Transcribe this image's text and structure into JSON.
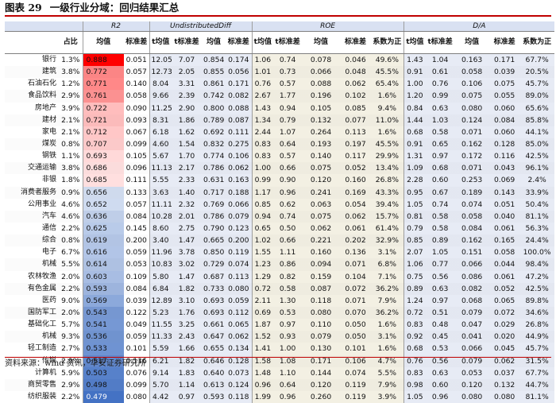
{
  "figure": {
    "label": "图表 29",
    "title": "一级行业分域：回归结果汇总",
    "source": "资料来源：wind 资讯，华安证券研究所"
  },
  "groups": {
    "r2": "R2",
    "ud": "UndistributedDiff",
    "roe": "ROE",
    "da": "D/A"
  },
  "subheaders": {
    "share": "占比",
    "r2_mean": "均值",
    "r2_std": "标准差",
    "t_mean": "t均值",
    "t_std": "t标准差",
    "mean": "均值",
    "std": "标准差",
    "pos": "系数为正"
  },
  "colors": {
    "r2_high": "#ff0000",
    "r2_low": "#4472c4",
    "title_rule": "#c00000",
    "group_header": "#d9e1f2"
  },
  "rows": [
    {
      "industry": "银行",
      "share": "1.3%",
      "r2": 0.888,
      "r2s": "0.051",
      "ud_tm": "12.05",
      "ud_ts": "7.07",
      "ud_m": "0.854",
      "ud_s": "0.174",
      "roe_tm": "1.06",
      "roe_ts": "0.74",
      "roe_m": "0.078",
      "roe_s": "0.046",
      "roe_p": "49.6%",
      "da_tm": "1.43",
      "da_ts": "1.04",
      "da_m": "0.163",
      "da_s": "0.171",
      "da_p": "67.7%"
    },
    {
      "industry": "建筑",
      "share": "3.8%",
      "r2": 0.772,
      "r2s": "0.057",
      "ud_tm": "12.73",
      "ud_ts": "2.05",
      "ud_m": "0.855",
      "ud_s": "0.056",
      "roe_tm": "1.01",
      "roe_ts": "0.73",
      "roe_m": "0.066",
      "roe_s": "0.048",
      "roe_p": "45.5%",
      "da_tm": "0.91",
      "da_ts": "0.61",
      "da_m": "0.058",
      "da_s": "0.039",
      "da_p": "20.5%"
    },
    {
      "industry": "石油石化",
      "share": "1.2%",
      "r2": 0.771,
      "r2s": "0.140",
      "ud_tm": "8.04",
      "ud_ts": "3.31",
      "ud_m": "0.861",
      "ud_s": "0.171",
      "roe_tm": "0.76",
      "roe_ts": "0.57",
      "roe_m": "0.088",
      "roe_s": "0.062",
      "roe_p": "65.4%",
      "da_tm": "1.00",
      "da_ts": "0.76",
      "da_m": "0.106",
      "da_s": "0.075",
      "da_p": "45.7%"
    },
    {
      "industry": "食品饮料",
      "share": "2.9%",
      "r2": 0.761,
      "r2s": "0.058",
      "ud_tm": "9.66",
      "ud_ts": "2.39",
      "ud_m": "0.742",
      "ud_s": "0.082",
      "roe_tm": "2.67",
      "roe_ts": "1.77",
      "roe_m": "0.196",
      "roe_s": "0.102",
      "roe_p": "1.6%",
      "da_tm": "1.20",
      "da_ts": "0.99",
      "da_m": "0.075",
      "da_s": "0.055",
      "da_p": "89.0%"
    },
    {
      "industry": "房地产",
      "share": "3.9%",
      "r2": 0.722,
      "r2s": "0.090",
      "ud_tm": "11.25",
      "ud_ts": "2.90",
      "ud_m": "0.800",
      "ud_s": "0.088",
      "roe_tm": "1.43",
      "roe_ts": "0.94",
      "roe_m": "0.105",
      "roe_s": "0.085",
      "roe_p": "9.4%",
      "da_tm": "0.84",
      "da_ts": "0.63",
      "da_m": "0.080",
      "da_s": "0.060",
      "da_p": "65.6%"
    },
    {
      "industry": "建材",
      "share": "2.1%",
      "r2": 0.721,
      "r2s": "0.093",
      "ud_tm": "8.31",
      "ud_ts": "1.86",
      "ud_m": "0.789",
      "ud_s": "0.087",
      "roe_tm": "1.34",
      "roe_ts": "0.79",
      "roe_m": "0.132",
      "roe_s": "0.077",
      "roe_p": "11.0%",
      "da_tm": "1.44",
      "da_ts": "1.03",
      "da_m": "0.124",
      "da_s": "0.084",
      "da_p": "85.8%"
    },
    {
      "industry": "家电",
      "share": "2.1%",
      "r2": 0.712,
      "r2s": "0.067",
      "ud_tm": "6.18",
      "ud_ts": "1.62",
      "ud_m": "0.692",
      "ud_s": "0.111",
      "roe_tm": "2.44",
      "roe_ts": "1.07",
      "roe_m": "0.264",
      "roe_s": "0.113",
      "roe_p": "1.6%",
      "da_tm": "0.68",
      "da_ts": "0.58",
      "da_m": "0.071",
      "da_s": "0.060",
      "da_p": "44.1%"
    },
    {
      "industry": "煤炭",
      "share": "0.8%",
      "r2": 0.707,
      "r2s": "0.099",
      "ud_tm": "4.60",
      "ud_ts": "1.54",
      "ud_m": "0.832",
      "ud_s": "0.275",
      "roe_tm": "0.83",
      "roe_ts": "0.64",
      "roe_m": "0.193",
      "roe_s": "0.197",
      "roe_p": "45.5%",
      "da_tm": "0.91",
      "da_ts": "0.65",
      "da_m": "0.162",
      "da_s": "0.128",
      "da_p": "85.0%"
    },
    {
      "industry": "钢铁",
      "share": "1.1%",
      "r2": 0.693,
      "r2s": "0.105",
      "ud_tm": "5.67",
      "ud_ts": "1.70",
      "ud_m": "0.774",
      "ud_s": "0.106",
      "roe_tm": "0.83",
      "roe_ts": "0.57",
      "roe_m": "0.140",
      "roe_s": "0.117",
      "roe_p": "29.9%",
      "da_tm": "1.31",
      "da_ts": "0.97",
      "da_m": "0.172",
      "da_s": "0.116",
      "da_p": "42.5%"
    },
    {
      "industry": "交通运输",
      "share": "3.8%",
      "r2": 0.686,
      "r2s": "0.096",
      "ud_tm": "11.13",
      "ud_ts": "2.17",
      "ud_m": "0.786",
      "ud_s": "0.062",
      "roe_tm": "1.00",
      "roe_ts": "0.66",
      "roe_m": "0.075",
      "roe_s": "0.052",
      "roe_p": "13.4%",
      "da_tm": "1.09",
      "da_ts": "0.68",
      "da_m": "0.071",
      "da_s": "0.043",
      "da_p": "96.1%"
    },
    {
      "industry": "非银",
      "share": "1.8%",
      "r2": 0.685,
      "r2s": "0.111",
      "ud_tm": "5.55",
      "ud_ts": "2.33",
      "ud_m": "0.631",
      "ud_s": "0.163",
      "roe_tm": "0.99",
      "roe_ts": "0.90",
      "roe_m": "0.120",
      "roe_s": "0.160",
      "roe_p": "26.8%",
      "da_tm": "2.28",
      "da_ts": "0.60",
      "da_m": "0.253",
      "da_s": "0.069",
      "da_p": "2.4%"
    },
    {
      "industry": "消费者服务",
      "share": "0.9%",
      "r2": 0.656,
      "r2s": "0.133",
      "ud_tm": "3.63",
      "ud_ts": "1.40",
      "ud_m": "0.717",
      "ud_s": "0.188",
      "roe_tm": "1.17",
      "roe_ts": "0.96",
      "roe_m": "0.241",
      "roe_s": "0.169",
      "roe_p": "43.3%",
      "da_tm": "0.95",
      "da_ts": "0.67",
      "da_m": "0.189",
      "da_s": "0.143",
      "da_p": "33.9%"
    },
    {
      "industry": "公用事业",
      "share": "4.6%",
      "r2": 0.652,
      "r2s": "0.057",
      "ud_tm": "11.11",
      "ud_ts": "2.32",
      "ud_m": "0.769",
      "ud_s": "0.066",
      "roe_tm": "0.85",
      "roe_ts": "0.62",
      "roe_m": "0.063",
      "roe_s": "0.054",
      "roe_p": "39.4%",
      "da_tm": "1.05",
      "da_ts": "0.74",
      "da_m": "0.074",
      "da_s": "0.051",
      "da_p": "50.4%"
    },
    {
      "industry": "汽车",
      "share": "4.6%",
      "r2": 0.636,
      "r2s": "0.084",
      "ud_tm": "10.28",
      "ud_ts": "2.01",
      "ud_m": "0.786",
      "ud_s": "0.079",
      "roe_tm": "0.94",
      "roe_ts": "0.74",
      "roe_m": "0.075",
      "roe_s": "0.062",
      "roe_p": "15.7%",
      "da_tm": "0.81",
      "da_ts": "0.58",
      "da_m": "0.058",
      "da_s": "0.040",
      "da_p": "81.1%"
    },
    {
      "industry": "通信",
      "share": "2.2%",
      "r2": 0.625,
      "r2s": "0.145",
      "ud_tm": "8.60",
      "ud_ts": "2.75",
      "ud_m": "0.790",
      "ud_s": "0.123",
      "roe_tm": "0.65",
      "roe_ts": "0.50",
      "roe_m": "0.062",
      "roe_s": "0.061",
      "roe_p": "61.4%",
      "da_tm": "0.79",
      "da_ts": "0.58",
      "da_m": "0.084",
      "da_s": "0.061",
      "da_p": "56.3%"
    },
    {
      "industry": "综合",
      "share": "0.8%",
      "r2": 0.619,
      "r2s": "0.200",
      "ud_tm": "3.40",
      "ud_ts": "1.47",
      "ud_m": "0.665",
      "ud_s": "0.200",
      "roe_tm": "1.02",
      "roe_ts": "0.66",
      "roe_m": "0.221",
      "roe_s": "0.202",
      "roe_p": "32.9%",
      "da_tm": "0.85",
      "da_ts": "0.89",
      "da_m": "0.162",
      "da_s": "0.165",
      "da_p": "24.4%"
    },
    {
      "industry": "电子",
      "share": "6.7%",
      "r2": 0.616,
      "r2s": "0.059",
      "ud_tm": "11.96",
      "ud_ts": "3.78",
      "ud_m": "0.850",
      "ud_s": "0.119",
      "roe_tm": "1.55",
      "roe_ts": "1.11",
      "roe_m": "0.160",
      "roe_s": "0.136",
      "roe_p": "3.1%",
      "da_tm": "2.07",
      "da_ts": "1.05",
      "da_m": "0.151",
      "da_s": "0.058",
      "da_p": "100.0%"
    },
    {
      "industry": "机械",
      "share": "5.5%",
      "r2": 0.614,
      "r2s": "0.053",
      "ud_tm": "10.83",
      "ud_ts": "3.02",
      "ud_m": "0.729",
      "ud_s": "0.074",
      "roe_tm": "1.23",
      "roe_ts": "0.86",
      "roe_m": "0.094",
      "roe_s": "0.071",
      "roe_p": "6.8%",
      "da_tm": "1.06",
      "da_ts": "0.77",
      "da_m": "0.066",
      "da_s": "0.044",
      "da_p": "98.4%"
    },
    {
      "industry": "农林牧渔",
      "share": "2.0%",
      "r2": 0.603,
      "r2s": "0.109",
      "ud_tm": "5.80",
      "ud_ts": "1.47",
      "ud_m": "0.687",
      "ud_s": "0.113",
      "roe_tm": "1.29",
      "roe_ts": "0.82",
      "roe_m": "0.159",
      "roe_s": "0.104",
      "roe_p": "7.1%",
      "da_tm": "0.75",
      "da_ts": "0.56",
      "da_m": "0.086",
      "da_s": "0.061",
      "da_p": "47.2%"
    },
    {
      "industry": "有色金属",
      "share": "2.2%",
      "r2": 0.593,
      "r2s": "0.084",
      "ud_tm": "6.84",
      "ud_ts": "1.82",
      "ud_m": "0.733",
      "ud_s": "0.080",
      "roe_tm": "0.72",
      "roe_ts": "0.58",
      "roe_m": "0.087",
      "roe_s": "0.072",
      "roe_p": "36.2%",
      "da_tm": "0.89",
      "da_ts": "0.63",
      "da_m": "0.082",
      "da_s": "0.052",
      "da_p": "42.5%"
    },
    {
      "industry": "医药",
      "share": "9.0%",
      "r2": 0.569,
      "r2s": "0.039",
      "ud_tm": "12.89",
      "ud_ts": "3.10",
      "ud_m": "0.693",
      "ud_s": "0.059",
      "roe_tm": "2.11",
      "roe_ts": "1.30",
      "roe_m": "0.118",
      "roe_s": "0.071",
      "roe_p": "7.9%",
      "da_tm": "1.24",
      "da_ts": "0.97",
      "da_m": "0.068",
      "da_s": "0.065",
      "da_p": "89.8%"
    },
    {
      "industry": "国防军工",
      "share": "2.0%",
      "r2": 0.543,
      "r2s": "0.122",
      "ud_tm": "5.23",
      "ud_ts": "1.76",
      "ud_m": "0.693",
      "ud_s": "0.112",
      "roe_tm": "0.69",
      "roe_ts": "0.53",
      "roe_m": "0.080",
      "roe_s": "0.070",
      "roe_p": "36.2%",
      "da_tm": "0.72",
      "da_ts": "0.51",
      "da_m": "0.079",
      "da_s": "0.072",
      "da_p": "34.6%"
    },
    {
      "industry": "基础化工",
      "share": "5.7%",
      "r2": 0.541,
      "r2s": "0.049",
      "ud_tm": "11.55",
      "ud_ts": "3.25",
      "ud_m": "0.661",
      "ud_s": "0.065",
      "roe_tm": "1.87",
      "roe_ts": "0.97",
      "roe_m": "0.110",
      "roe_s": "0.050",
      "roe_p": "1.6%",
      "da_tm": "0.83",
      "da_ts": "0.48",
      "da_m": "0.047",
      "da_s": "0.029",
      "da_p": "26.8%"
    },
    {
      "industry": "机械",
      "share": "9.3%",
      "r2": 0.536,
      "r2s": "0.059",
      "ud_tm": "11.33",
      "ud_ts": "2.43",
      "ud_m": "0.647",
      "ud_s": "0.062",
      "roe_tm": "1.52",
      "roe_ts": "0.93",
      "roe_m": "0.079",
      "roe_s": "0.050",
      "roe_p": "3.1%",
      "da_tm": "0.92",
      "da_ts": "0.45",
      "da_m": "0.041",
      "da_s": "0.020",
      "da_p": "44.9%"
    },
    {
      "industry": "轻工制造",
      "share": "2.7%",
      "r2": 0.533,
      "r2s": "0.101",
      "ud_tm": "5.59",
      "ud_ts": "1.66",
      "ud_m": "0.655",
      "ud_s": "0.134",
      "roe_tm": "1.41",
      "roe_ts": "1.00",
      "roe_m": "0.130",
      "roe_s": "0.101",
      "roe_p": "1.6%",
      "da_tm": "0.68",
      "da_ts": "0.53",
      "da_m": "0.066",
      "da_s": "0.045",
      "da_p": "45.7%"
    },
    {
      "industry": "传媒",
      "share": "2.9%",
      "r2": 0.517,
      "r2s": "0.116",
      "ud_tm": "6.21",
      "ud_ts": "1.82",
      "ud_m": "0.646",
      "ud_s": "0.128",
      "roe_tm": "1.58",
      "roe_ts": "1.08",
      "roe_m": "0.171",
      "roe_s": "0.106",
      "roe_p": "4.7%",
      "da_tm": "0.76",
      "da_ts": "0.56",
      "da_m": "0.079",
      "da_s": "0.062",
      "da_p": "31.5%"
    },
    {
      "industry": "计算机",
      "share": "5.9%",
      "r2": 0.503,
      "r2s": "0.076",
      "ud_tm": "9.14",
      "ud_ts": "1.83",
      "ud_m": "0.640",
      "ud_s": "0.073",
      "roe_tm": "1.48",
      "roe_ts": "1.10",
      "roe_m": "0.144",
      "roe_s": "0.074",
      "roe_p": "5.5%",
      "da_tm": "0.83",
      "da_ts": "0.63",
      "da_m": "0.053",
      "da_s": "0.037",
      "da_p": "67.7%"
    },
    {
      "industry": "商贸零售",
      "share": "2.9%",
      "r2": 0.498,
      "r2s": "0.099",
      "ud_tm": "5.70",
      "ud_ts": "1.14",
      "ud_m": "0.613",
      "ud_s": "0.124",
      "roe_tm": "0.96",
      "roe_ts": "0.64",
      "roe_m": "0.120",
      "roe_s": "0.119",
      "roe_p": "7.9%",
      "da_tm": "0.98",
      "da_ts": "0.60",
      "da_m": "0.120",
      "da_s": "0.132",
      "da_p": "44.7%"
    },
    {
      "industry": "纺织服装",
      "share": "2.2%",
      "r2": 0.479,
      "r2s": "0.080",
      "ud_tm": "4.42",
      "ud_ts": "0.97",
      "ud_m": "0.593",
      "ud_s": "0.118",
      "roe_tm": "1.99",
      "roe_ts": "0.96",
      "roe_m": "0.260",
      "roe_s": "0.119",
      "roe_p": "3.9%",
      "da_tm": "1.05",
      "da_ts": "0.96",
      "da_m": "0.080",
      "da_s": "0.080",
      "da_p": "81.1%"
    }
  ]
}
